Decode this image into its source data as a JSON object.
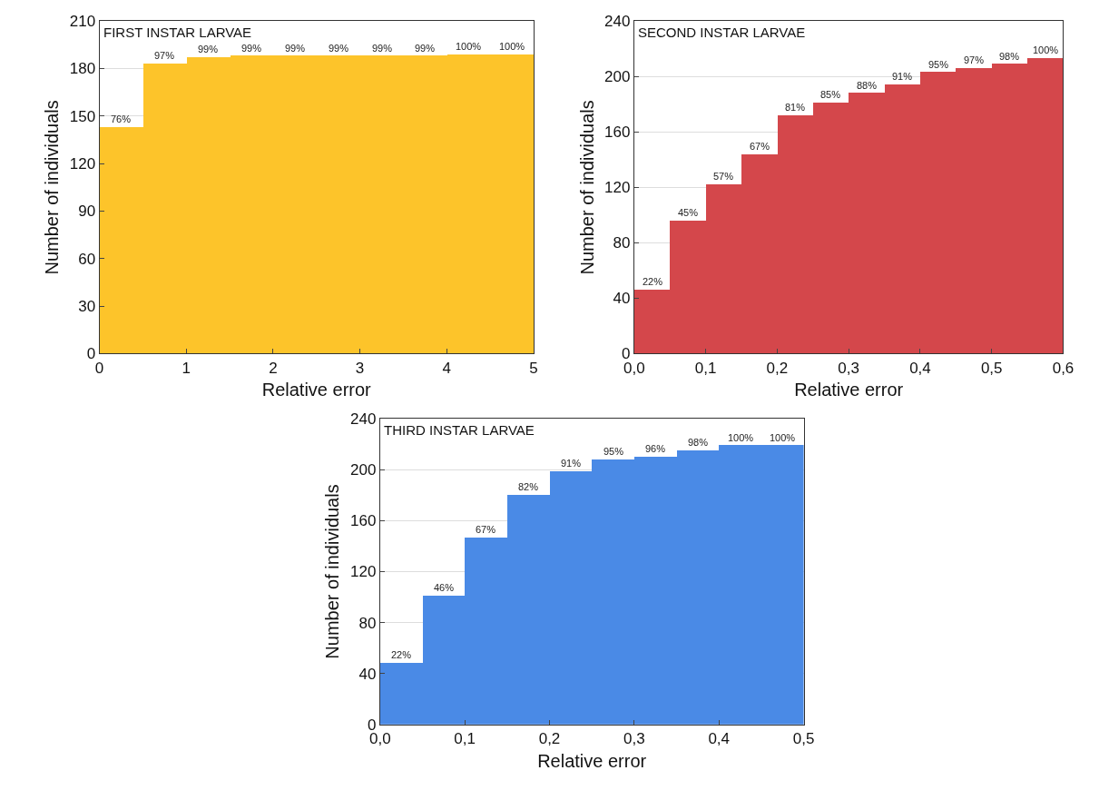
{
  "chart_data": [
    {
      "type": "histogram",
      "title": "FIRST INSTAR LARVAE",
      "xlabel": "Relative error",
      "ylabel": "Number of individuals",
      "bins": [
        0,
        0.5,
        1,
        1.5,
        2,
        2.5,
        3,
        3.5,
        4,
        4.5,
        5
      ],
      "values": [
        143,
        183,
        187,
        188,
        188,
        188,
        188,
        188,
        189,
        189
      ],
      "annotations": [
        {
          "text": "76%",
          "x": 0.25,
          "y": 143
        },
        {
          "text": "97%",
          "x": 0.75,
          "y": 183
        },
        {
          "text": "99%",
          "x": 1.25,
          "y": 187
        },
        {
          "text": "99%",
          "x": 1.75,
          "y": 188
        },
        {
          "text": "99%",
          "x": 2.25,
          "y": 188
        },
        {
          "text": "99%",
          "x": 2.75,
          "y": 188
        },
        {
          "text": "99%",
          "x": 3.25,
          "y": 188
        },
        {
          "text": "99%",
          "x": 3.75,
          "y": 188
        },
        {
          "text": "100%",
          "x": 4.25,
          "y": 189
        },
        {
          "text": "100%",
          "x": 4.75,
          "y": 189
        }
      ],
      "color": "#fdc42a",
      "xlim": [
        0,
        5
      ],
      "xticks": [
        0,
        1,
        2,
        3,
        4,
        5
      ],
      "ylim": [
        0,
        210
      ],
      "yticks": [
        0,
        30,
        60,
        90,
        120,
        150,
        180,
        210
      ],
      "grid": "y"
    },
    {
      "type": "histogram",
      "title": "SECOND INSTAR LARVAE",
      "xlabel": "Relative error",
      "ylabel": "Number of individuals",
      "bins": [
        0,
        0.05,
        0.1,
        0.15,
        0.2,
        0.25,
        0.3,
        0.35,
        0.4,
        0.45,
        0.5,
        0.55,
        0.6
      ],
      "values": [
        46,
        96,
        122,
        144,
        172,
        181,
        188,
        194,
        203,
        206,
        209,
        213
      ],
      "annotations": [
        {
          "text": "22%",
          "x": 0.025,
          "y": 46
        },
        {
          "text": "45%",
          "x": 0.075,
          "y": 96
        },
        {
          "text": "57%",
          "x": 0.125,
          "y": 122
        },
        {
          "text": "67%",
          "x": 0.175,
          "y": 144
        },
        {
          "text": "81%",
          "x": 0.225,
          "y": 172
        },
        {
          "text": "85%",
          "x": 0.275,
          "y": 181
        },
        {
          "text": "88%",
          "x": 0.325,
          "y": 188
        },
        {
          "text": "91%",
          "x": 0.375,
          "y": 194
        },
        {
          "text": "95%",
          "x": 0.425,
          "y": 203
        },
        {
          "text": "97%",
          "x": 0.475,
          "y": 206
        },
        {
          "text": "98%",
          "x": 0.525,
          "y": 209
        },
        {
          "text": "100%",
          "x": 0.575,
          "y": 213
        }
      ],
      "color": "#d4474b",
      "xlim": [
        0,
        0.6
      ],
      "xticks": [
        {
          "value": 0,
          "label": "0,0"
        },
        {
          "value": 0.1,
          "label": "0,1"
        },
        {
          "value": 0.2,
          "label": "0,2"
        },
        {
          "value": 0.3,
          "label": "0,3"
        },
        {
          "value": 0.4,
          "label": "0,4"
        },
        {
          "value": 0.5,
          "label": "0,5"
        },
        {
          "value": 0.6,
          "label": "0,6"
        }
      ],
      "ylim": [
        0,
        240
      ],
      "yticks": [
        0,
        40,
        80,
        120,
        160,
        200,
        240
      ],
      "grid": "y"
    },
    {
      "type": "histogram",
      "title": "THIRD INSTAR LARVAE",
      "xlabel": "Relative error",
      "ylabel": "Number of individuals",
      "bins": [
        0,
        0.05,
        0.1,
        0.15,
        0.2,
        0.25,
        0.3,
        0.35,
        0.4,
        0.45,
        0.5
      ],
      "values": [
        48,
        101,
        147,
        180,
        199,
        208,
        210,
        215,
        219,
        219
      ],
      "annotations": [
        {
          "text": "22%",
          "x": 0.025,
          "y": 48
        },
        {
          "text": "46%",
          "x": 0.075,
          "y": 101
        },
        {
          "text": "67%",
          "x": 0.125,
          "y": 147
        },
        {
          "text": "82%",
          "x": 0.175,
          "y": 180
        },
        {
          "text": "91%",
          "x": 0.225,
          "y": 199
        },
        {
          "text": "95%",
          "x": 0.275,
          "y": 208
        },
        {
          "text": "96%",
          "x": 0.325,
          "y": 210
        },
        {
          "text": "98%",
          "x": 0.375,
          "y": 215
        },
        {
          "text": "100%",
          "x": 0.425,
          "y": 219
        },
        {
          "text": "100%",
          "x": 0.475,
          "y": 219
        }
      ],
      "color": "#4a8ae6",
      "xlim": [
        0,
        0.5
      ],
      "xticks": [
        {
          "value": 0,
          "label": "0,0"
        },
        {
          "value": 0.1,
          "label": "0,1"
        },
        {
          "value": 0.2,
          "label": "0,2"
        },
        {
          "value": 0.3,
          "label": "0,3"
        },
        {
          "value": 0.4,
          "label": "0,4"
        },
        {
          "value": 0.5,
          "label": "0,5"
        }
      ],
      "ylim": [
        0,
        240
      ],
      "yticks": [
        0,
        40,
        80,
        120,
        160,
        200,
        240
      ],
      "grid": "y"
    }
  ]
}
